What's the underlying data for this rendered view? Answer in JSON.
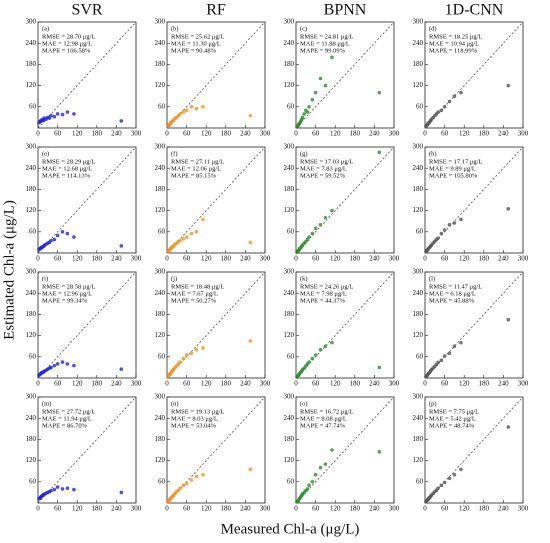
{
  "column_titles": [
    "SVR",
    "RF",
    "BPNN",
    "1D-CNN"
  ],
  "x_label": "Measured Chl-a (μg/L)",
  "y_label": "Estimated Chl-a (μg/L)",
  "chart_data": [
    {
      "type": "scatter",
      "panel_label": "(a)",
      "annotations": [
        "RMSE = 28.70 μg/L",
        "MAE = 12.98 μg/L",
        "MAPE = 106.58%"
      ],
      "color": "#2323e0",
      "x": [
        3,
        6,
        8,
        10,
        12,
        15,
        18,
        20,
        25,
        30,
        35,
        40,
        50,
        60,
        75,
        90,
        110,
        255
      ],
      "y": [
        15,
        18,
        20,
        22,
        20,
        25,
        22,
        28,
        25,
        30,
        28,
        35,
        32,
        40,
        38,
        45,
        40,
        20
      ],
      "xlim": [
        0,
        300
      ],
      "ylim": [
        0,
        300
      ],
      "xticks": [
        0,
        60,
        120,
        180,
        240,
        300
      ],
      "yticks": [
        60,
        120,
        180,
        240,
        300
      ]
    },
    {
      "type": "scatter",
      "panel_label": "(b)",
      "annotations": [
        "RMSE = 25.62 μg/L",
        "MAE = 11.30 μg/L",
        "MAPE = 90.48%"
      ],
      "color": "#f5901e",
      "x": [
        3,
        6,
        8,
        10,
        12,
        15,
        18,
        20,
        25,
        30,
        35,
        40,
        50,
        60,
        75,
        90,
        110,
        255
      ],
      "y": [
        5,
        8,
        10,
        12,
        15,
        18,
        20,
        22,
        28,
        30,
        35,
        40,
        45,
        50,
        60,
        55,
        60,
        35
      ],
      "xlim": [
        0,
        300
      ],
      "ylim": [
        0,
        300
      ],
      "xticks": [
        0,
        60,
        120,
        180,
        240,
        300
      ],
      "yticks": [
        60,
        120,
        180,
        240,
        300
      ]
    },
    {
      "type": "scatter",
      "panel_label": "(c)",
      "annotations": [
        "RMSE = 24.81 μg/L",
        "MAE = 11.88 μg/L",
        "MAPE = 99.09%"
      ],
      "color": "#2e8b2e",
      "x": [
        3,
        6,
        8,
        10,
        12,
        15,
        18,
        20,
        25,
        30,
        35,
        40,
        50,
        60,
        75,
        90,
        110,
        255
      ],
      "y": [
        3,
        6,
        10,
        12,
        15,
        20,
        25,
        30,
        40,
        50,
        45,
        60,
        80,
        100,
        140,
        120,
        200,
        100
      ],
      "xlim": [
        0,
        300
      ],
      "ylim": [
        0,
        300
      ],
      "xticks": [
        0,
        60,
        120,
        180,
        240,
        300
      ],
      "yticks": [
        60,
        120,
        180,
        240,
        300
      ]
    },
    {
      "type": "scatter",
      "panel_label": "(d)",
      "annotations": [
        "RMSE = 18.25 μg/L",
        "MAE = 10.94 μg/L",
        "MAPE = 118.99%"
      ],
      "color": "#555555",
      "x": [
        3,
        6,
        8,
        10,
        12,
        15,
        18,
        20,
        25,
        30,
        35,
        40,
        50,
        60,
        75,
        90,
        110,
        255
      ],
      "y": [
        5,
        8,
        10,
        13,
        15,
        18,
        22,
        25,
        30,
        35,
        40,
        45,
        50,
        60,
        75,
        90,
        100,
        120
      ],
      "xlim": [
        0,
        300
      ],
      "ylim": [
        0,
        300
      ],
      "xticks": [
        0,
        60,
        120,
        180,
        240,
        300
      ],
      "yticks": [
        60,
        120,
        180,
        240,
        300
      ]
    },
    {
      "type": "scatter",
      "panel_label": "(e)",
      "annotations": [
        "RMSE = 28.29 μg/L",
        "MAE = 12.68 μg/L",
        "MAPE = 114.13%"
      ],
      "color": "#2323e0",
      "x": [
        3,
        6,
        8,
        10,
        12,
        15,
        18,
        20,
        25,
        30,
        35,
        40,
        50,
        60,
        75,
        90,
        110,
        255
      ],
      "y": [
        10,
        12,
        14,
        15,
        16,
        18,
        20,
        22,
        25,
        28,
        30,
        35,
        38,
        50,
        60,
        55,
        45,
        20
      ],
      "xlim": [
        0,
        300
      ],
      "ylim": [
        0,
        300
      ],
      "xticks": [
        0,
        60,
        120,
        180,
        240,
        300
      ],
      "yticks": [
        60,
        120,
        180,
        240,
        300
      ]
    },
    {
      "type": "scatter",
      "panel_label": "(f)",
      "annotations": [
        "RMSE = 27.11 μg/L",
        "MAE = 12.06 μg/L",
        "MAPE = 85.15%"
      ],
      "color": "#f5901e",
      "x": [
        3,
        6,
        8,
        10,
        12,
        15,
        18,
        20,
        25,
        30,
        35,
        40,
        50,
        60,
        75,
        90,
        110,
        255
      ],
      "y": [
        4,
        7,
        9,
        12,
        14,
        16,
        18,
        20,
        25,
        28,
        32,
        35,
        40,
        45,
        55,
        60,
        95,
        30
      ],
      "xlim": [
        0,
        300
      ],
      "ylim": [
        0,
        300
      ],
      "xticks": [
        0,
        60,
        120,
        180,
        240,
        300
      ],
      "yticks": [
        60,
        120,
        180,
        240,
        300
      ]
    },
    {
      "type": "scatter",
      "panel_label": "(g)",
      "annotations": [
        "RMSE = 17.03 μg/L",
        "MAE = 7.83 μg/L",
        "MAPE = 59.52%"
      ],
      "color": "#2e8b2e",
      "x": [
        3,
        6,
        8,
        10,
        12,
        15,
        18,
        20,
        25,
        30,
        35,
        40,
        50,
        60,
        75,
        90,
        110,
        255
      ],
      "y": [
        2,
        5,
        8,
        10,
        13,
        16,
        20,
        22,
        28,
        32,
        38,
        45,
        55,
        70,
        80,
        100,
        120,
        285
      ],
      "xlim": [
        0,
        300
      ],
      "ylim": [
        0,
        300
      ],
      "xticks": [
        0,
        60,
        120,
        180,
        240,
        300
      ],
      "yticks": [
        60,
        120,
        180,
        240,
        300
      ]
    },
    {
      "type": "scatter",
      "panel_label": "(h)",
      "annotations": [
        "RMSE = 17.17 μg/L",
        "MAE = 9.89 μg/L",
        "MAPE = 105.80%"
      ],
      "color": "#555555",
      "x": [
        3,
        6,
        8,
        10,
        12,
        15,
        18,
        20,
        25,
        30,
        35,
        40,
        50,
        60,
        75,
        90,
        110,
        255
      ],
      "y": [
        5,
        7,
        9,
        12,
        14,
        17,
        20,
        23,
        28,
        33,
        38,
        42,
        55,
        65,
        80,
        85,
        95,
        125
      ],
      "xlim": [
        0,
        300
      ],
      "ylim": [
        0,
        300
      ],
      "xticks": [
        0,
        60,
        120,
        180,
        240,
        300
      ],
      "yticks": [
        60,
        120,
        180,
        240,
        300
      ]
    },
    {
      "type": "scatter",
      "panel_label": "(i)",
      "annotations": [
        "RMSE = 28.58 μg/L",
        "MAE = 12.96 μg/L",
        "MAPE = 99.34%"
      ],
      "color": "#2323e0",
      "x": [
        3,
        6,
        8,
        10,
        12,
        15,
        18,
        20,
        25,
        30,
        35,
        40,
        50,
        60,
        75,
        90,
        110,
        255
      ],
      "y": [
        8,
        10,
        12,
        14,
        15,
        16,
        18,
        20,
        22,
        25,
        28,
        30,
        35,
        40,
        45,
        40,
        35,
        25
      ],
      "xlim": [
        0,
        300
      ],
      "ylim": [
        0,
        300
      ],
      "xticks": [
        0,
        60,
        120,
        180,
        240,
        300
      ],
      "yticks": [
        60,
        120,
        180,
        240,
        300
      ]
    },
    {
      "type": "scatter",
      "panel_label": "(j)",
      "annotations": [
        "RMSE = 18.48 μg/L",
        "MAE = 7.67 μg/L",
        "MAPE = 50.27%"
      ],
      "color": "#f5901e",
      "x": [
        3,
        6,
        8,
        10,
        12,
        15,
        18,
        20,
        25,
        30,
        35,
        40,
        50,
        60,
        75,
        90,
        110,
        255
      ],
      "y": [
        5,
        8,
        10,
        12,
        15,
        18,
        22,
        25,
        30,
        35,
        40,
        45,
        55,
        65,
        70,
        80,
        85,
        105
      ],
      "xlim": [
        0,
        300
      ],
      "ylim": [
        0,
        300
      ],
      "xticks": [
        0,
        60,
        120,
        180,
        240,
        300
      ],
      "yticks": [
        60,
        120,
        180,
        240,
        300
      ]
    },
    {
      "type": "scatter",
      "panel_label": "(k)",
      "annotations": [
        "RMSE = 24.26 μg/L",
        "MAE = 7.98 μg/L",
        "MAPE = 44.37%"
      ],
      "color": "#2e8b2e",
      "x": [
        3,
        6,
        8,
        10,
        12,
        15,
        18,
        20,
        25,
        30,
        35,
        40,
        50,
        60,
        75,
        90,
        110,
        255
      ],
      "y": [
        3,
        6,
        8,
        11,
        14,
        17,
        20,
        24,
        28,
        34,
        40,
        45,
        55,
        65,
        80,
        90,
        100,
        30
      ],
      "xlim": [
        0,
        300
      ],
      "ylim": [
        0,
        300
      ],
      "xticks": [
        0,
        60,
        120,
        180,
        240,
        300
      ],
      "yticks": [
        60,
        120,
        180,
        240,
        300
      ]
    },
    {
      "type": "scatter",
      "panel_label": "(l)",
      "annotations": [
        "RMSE = 11.47 μg/L",
        "MAE = 6.18 μg/L",
        "MAPE = 45.88%"
      ],
      "color": "#555555",
      "x": [
        3,
        6,
        8,
        10,
        12,
        15,
        18,
        20,
        25,
        30,
        35,
        40,
        50,
        60,
        75,
        90,
        110,
        255
      ],
      "y": [
        4,
        7,
        9,
        12,
        14,
        17,
        21,
        24,
        28,
        33,
        38,
        44,
        50,
        62,
        70,
        90,
        100,
        165
      ],
      "xlim": [
        0,
        300
      ],
      "ylim": [
        0,
        300
      ],
      "xticks": [
        0,
        60,
        120,
        180,
        240,
        300
      ],
      "yticks": [
        60,
        120,
        180,
        240,
        300
      ]
    },
    {
      "type": "scatter",
      "panel_label": "(m)",
      "annotations": [
        "RMSE = 27.72 μg/L",
        "MAE = 11.94 μg/L",
        "MAPE = 86.70%"
      ],
      "color": "#2323e0",
      "x": [
        3,
        6,
        8,
        10,
        12,
        15,
        18,
        20,
        25,
        30,
        35,
        40,
        50,
        60,
        75,
        90,
        110,
        255
      ],
      "y": [
        12,
        14,
        16,
        18,
        20,
        22,
        25,
        25,
        28,
        30,
        32,
        35,
        38,
        45,
        40,
        42,
        38,
        30
      ],
      "xlim": [
        0,
        300
      ],
      "ylim": [
        0,
        300
      ],
      "xticks": [
        0,
        60,
        120,
        180,
        240,
        300
      ],
      "yticks": [
        60,
        120,
        180,
        240,
        300
      ]
    },
    {
      "type": "scatter",
      "panel_label": "(n)",
      "annotations": [
        "RMSE = 19.13 μg/L",
        "MAE = 8.03 μg/L",
        "MAPE = 53.04%"
      ],
      "color": "#f5901e",
      "x": [
        3,
        6,
        8,
        10,
        12,
        15,
        18,
        20,
        25,
        30,
        35,
        40,
        50,
        60,
        75,
        90,
        110,
        255
      ],
      "y": [
        4,
        7,
        9,
        11,
        14,
        17,
        20,
        22,
        28,
        32,
        36,
        42,
        50,
        55,
        65,
        75,
        80,
        95
      ],
      "xlim": [
        0,
        300
      ],
      "ylim": [
        0,
        300
      ],
      "xticks": [
        0,
        60,
        120,
        180,
        240,
        300
      ],
      "yticks": [
        60,
        120,
        180,
        240,
        300
      ]
    },
    {
      "type": "scatter",
      "panel_label": "(o)",
      "annotations": [
        "RMSE = 16.72 μg/L",
        "MAE = 8.08 μg/L",
        "MAPE = 47.74%"
      ],
      "color": "#2e8b2e",
      "x": [
        3,
        6,
        8,
        10,
        12,
        15,
        18,
        20,
        25,
        30,
        35,
        40,
        50,
        60,
        75,
        90,
        110,
        255
      ],
      "y": [
        3,
        5,
        8,
        12,
        14,
        18,
        22,
        26,
        30,
        35,
        40,
        50,
        60,
        80,
        100,
        110,
        150,
        145
      ],
      "xlim": [
        0,
        300
      ],
      "ylim": [
        0,
        300
      ],
      "xticks": [
        0,
        60,
        120,
        180,
        240,
        300
      ],
      "yticks": [
        60,
        120,
        180,
        240,
        300
      ]
    },
    {
      "type": "scatter",
      "panel_label": "(p)",
      "annotations": [
        "RMSE = 7.75 μg/L",
        "MAE = 5.42 μg/L",
        "MAPE = 48.74%"
      ],
      "color": "#555555",
      "x": [
        3,
        6,
        8,
        10,
        12,
        15,
        18,
        20,
        25,
        30,
        35,
        40,
        50,
        60,
        75,
        90,
        110,
        255
      ],
      "y": [
        4,
        7,
        9,
        11,
        14,
        16,
        20,
        23,
        27,
        32,
        36,
        42,
        50,
        58,
        70,
        80,
        95,
        215
      ],
      "xlim": [
        0,
        300
      ],
      "ylim": [
        0,
        300
      ],
      "xticks": [
        0,
        60,
        120,
        180,
        240,
        300
      ],
      "yticks": [
        60,
        120,
        180,
        240,
        300
      ]
    }
  ]
}
